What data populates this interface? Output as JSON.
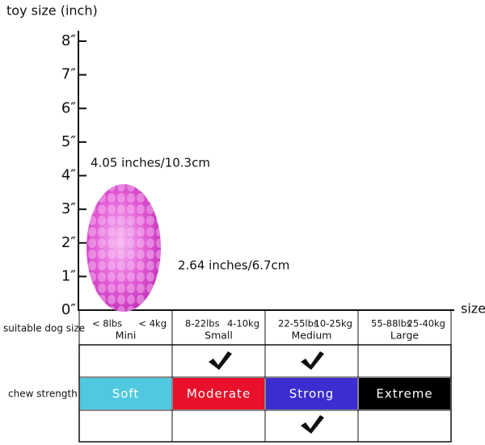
{
  "axis": {
    "title": "toy size (inch)",
    "ticks": [
      "0″",
      "1″",
      "2″",
      "3″",
      "4″",
      "5″",
      "6″",
      "7″",
      "8″"
    ],
    "x_title": "size"
  },
  "toy": {
    "height_label": "4.05 inches/10.3cm",
    "width_label": "2.64 inches/6.7cm"
  },
  "table": {
    "size_row_label": "suitable dog size",
    "strength_row_label": "chew strength",
    "sizes": [
      {
        "lbs": "< 8lbs",
        "kg": "< 4kg",
        "name": "Mini"
      },
      {
        "lbs": "8-22lbs",
        "kg": "4-10kg",
        "name": "Small"
      },
      {
        "lbs": "22-55lbs",
        "kg": "10-25kg",
        "name": "Medium"
      },
      {
        "lbs": "55-88lbs",
        "kg": "25-40kg",
        "name": "Large"
      }
    ],
    "strengths": [
      {
        "name": "Soft",
        "color": "#4fc8e0"
      },
      {
        "name": "Moderate",
        "color": "#e8102a"
      },
      {
        "name": "Strong",
        "color": "#3c2dd0"
      },
      {
        "name": "Extreme",
        "color": "#000000"
      }
    ]
  }
}
